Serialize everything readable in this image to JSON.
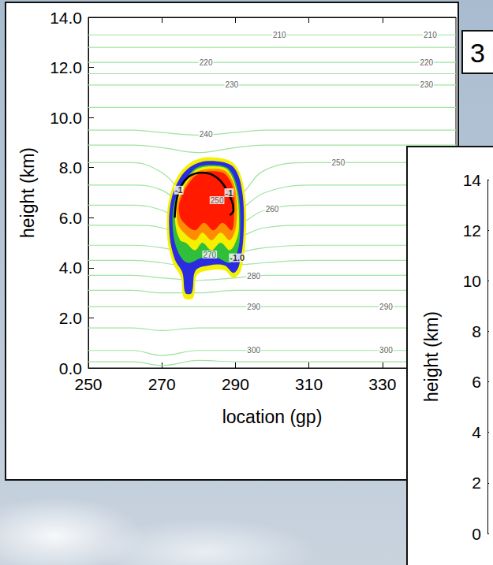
{
  "chart_data": [
    {
      "type": "contour",
      "xlabel": "location (gp)",
      "ylabel": "height (km)",
      "xlim": [
        250,
        350
      ],
      "xticks": [
        250,
        270,
        290,
        310,
        330
      ],
      "ylim": [
        0,
        14
      ],
      "yticks": [
        {
          "value": 0,
          "label": "0.0"
        },
        {
          "value": 2,
          "label": "2.0"
        },
        {
          "value": 4,
          "label": "4.0"
        },
        {
          "value": 6,
          "label": "6.0"
        },
        {
          "value": 8,
          "label": "8.0"
        },
        {
          "value": 10,
          "label": "10.0"
        },
        {
          "value": 12,
          "label": "12.0"
        },
        {
          "value": 14,
          "label": "14.0"
        }
      ],
      "grid": false,
      "isentropes": {
        "color": "#9fe39f",
        "x": [
          250,
          262,
          270,
          280,
          290,
          298,
          310,
          350
        ],
        "lines": [
          {
            "value": 210,
            "y": [
              13.3,
              13.3,
              13.3,
              13.3,
              13.3,
              13.3,
              13.3,
              13.3
            ],
            "label_x": [
              302,
              343
            ]
          },
          {
            "value": 215,
            "y": [
              12.8,
              12.8,
              12.8,
              12.8,
              12.8,
              12.8,
              12.8,
              12.8
            ],
            "label_x": []
          },
          {
            "value": 220,
            "y": [
              12.2,
              12.2,
              12.2,
              12.2,
              12.2,
              12.2,
              12.2,
              12.2
            ],
            "label_x": [
              282,
              342
            ]
          },
          {
            "value": 225,
            "y": [
              11.75,
              11.75,
              11.75,
              11.75,
              11.75,
              11.75,
              11.75,
              11.75
            ],
            "label_x": []
          },
          {
            "value": 230,
            "y": [
              11.3,
              11.3,
              11.3,
              11.3,
              11.3,
              11.3,
              11.3,
              11.3
            ],
            "label_x": [
              289,
              342
            ]
          },
          {
            "value": 235,
            "y": [
              10.4,
              10.4,
              10.4,
              10.4,
              10.4,
              10.4,
              10.4,
              10.4
            ],
            "label_x": []
          },
          {
            "value": 240,
            "y": [
              9.5,
              9.5,
              9.4,
              9.3,
              9.4,
              9.5,
              9.5,
              9.5
            ],
            "label_x": [
              282
            ]
          },
          {
            "value": 245,
            "y": [
              8.9,
              8.9,
              8.8,
              8.6,
              8.8,
              8.9,
              8.9,
              8.9
            ],
            "label_x": []
          },
          {
            "value": 250,
            "y": [
              8.2,
              8.2,
              7.8,
              6.6,
              6.8,
              7.9,
              8.2,
              8.2
            ],
            "label_x": [
              285,
              318
            ]
          },
          {
            "value": 255,
            "y": [
              7.3,
              7.3,
              7.1,
              6.2,
              6.3,
              7.0,
              7.3,
              7.3
            ],
            "label_x": []
          },
          {
            "value": 260,
            "y": [
              6.5,
              6.5,
              6.3,
              5.6,
              5.7,
              6.3,
              6.5,
              6.5
            ],
            "label_x": [
              300
            ]
          },
          {
            "value": 265,
            "y": [
              5.7,
              5.7,
              5.6,
              5.1,
              5.2,
              5.6,
              5.7,
              5.7
            ],
            "label_x": []
          },
          {
            "value": 270,
            "y": [
              4.9,
              4.9,
              4.8,
              4.5,
              4.6,
              4.8,
              4.9,
              4.9
            ],
            "label_x": [
              283
            ]
          },
          {
            "value": 275,
            "y": [
              4.3,
              4.3,
              4.2,
              4.0,
              4.1,
              4.2,
              4.3,
              4.3
            ],
            "label_x": []
          },
          {
            "value": 280,
            "y": [
              3.7,
              3.7,
              3.6,
              3.5,
              3.6,
              3.7,
              3.7,
              3.7
            ],
            "label_x": [
              295
            ]
          },
          {
            "value": 285,
            "y": [
              3.1,
              3.1,
              3.0,
              3.0,
              3.1,
              3.1,
              3.1,
              3.1
            ],
            "label_x": []
          },
          {
            "value": 290,
            "y": [
              2.45,
              2.45,
              2.45,
              2.45,
              2.45,
              2.45,
              2.45,
              2.45
            ],
            "label_x": [
              295,
              331
            ]
          },
          {
            "value": 295,
            "y": [
              1.6,
              1.6,
              1.5,
              1.6,
              1.6,
              1.6,
              1.6,
              1.6
            ],
            "label_x": []
          },
          {
            "value": 300,
            "y": [
              0.7,
              0.7,
              0.5,
              0.7,
              0.7,
              0.7,
              0.7,
              0.7
            ],
            "label_x": [
              295,
              331
            ]
          },
          {
            "value": 305,
            "y": [
              0.25,
              0.25,
              0.1,
              0.3,
              0.25,
              0.25,
              0.25,
              0.25
            ],
            "label_x": []
          }
        ]
      },
      "cloud": [
        {
          "color": "#f2f200",
          "x": [
            276.0,
            278.5,
            279.5,
            283,
            287,
            289.5,
            291.5,
            292.8,
            292.5,
            290,
            285,
            279,
            274.5,
            271.8,
            271.5,
            273,
            275.2
          ],
          "y": [
            2.8,
            2.8,
            3.7,
            3.9,
            3.9,
            3.6,
            3.9,
            5.2,
            7.0,
            8.1,
            8.4,
            8.3,
            7.7,
            6.6,
            5.2,
            4.2,
            3.6
          ]
        },
        {
          "color": "#2b2be0",
          "x": [
            276.4,
            278.1,
            279.2,
            283,
            287,
            289.5,
            291.0,
            292.2,
            291.9,
            289.6,
            285,
            279.2,
            275,
            272.4,
            272.1,
            273.5,
            275.6
          ],
          "y": [
            3.0,
            3.0,
            3.9,
            4.1,
            4.1,
            3.8,
            4.1,
            5.3,
            7.0,
            8.0,
            8.25,
            8.15,
            7.6,
            6.6,
            5.3,
            4.35,
            3.8
          ]
        },
        {
          "color": "#2fbf3a",
          "x": [
            277.0,
            281,
            285,
            288.5,
            290.5,
            291.3,
            290.8,
            288.5,
            285,
            279.5,
            276,
            273.4,
            273.0,
            274.5
          ],
          "y": [
            4.2,
            4.4,
            4.4,
            4.2,
            4.6,
            5.5,
            7.0,
            7.9,
            8.1,
            8.0,
            7.4,
            6.6,
            5.5,
            4.6
          ]
        },
        {
          "color": "#f5f000",
          "x": [
            276.5,
            279,
            281,
            283.5,
            286,
            288.5,
            290.5,
            291,
            290.3,
            288,
            285,
            279.7,
            276.3,
            273.9,
            273.7,
            275
          ],
          "y": [
            5.0,
            4.7,
            5.0,
            4.7,
            5.0,
            4.7,
            5.2,
            5.8,
            7.1,
            7.9,
            8.05,
            7.95,
            7.4,
            6.6,
            5.7,
            5.1
          ]
        },
        {
          "color": "#ff8c00",
          "x": [
            276,
            279,
            281,
            283.5,
            286,
            288.5,
            290.2,
            290,
            287.8,
            285,
            279.8,
            276.6,
            274.3,
            274.3
          ],
          "y": [
            5.4,
            5.1,
            5.4,
            5.1,
            5.4,
            5.1,
            5.7,
            7.1,
            7.8,
            7.95,
            7.85,
            7.35,
            6.6,
            5.8
          ]
        },
        {
          "color": "#ff1a00",
          "x": [
            276,
            279,
            281.5,
            284,
            286.5,
            289,
            289.6,
            289.5,
            287.5,
            285,
            280,
            277,
            274.8,
            274.8
          ],
          "y": [
            5.8,
            5.5,
            5.8,
            5.5,
            5.8,
            5.5,
            6.0,
            7.1,
            7.7,
            7.85,
            7.75,
            7.3,
            6.6,
            6.1
          ]
        }
      ],
      "contour": {
        "color": "#000000",
        "x": [
          273.5,
          274.5,
          277,
          281,
          285,
          288,
          289.5,
          288.5
        ],
        "y": [
          6.0,
          7.0,
          7.6,
          7.8,
          7.6,
          7.0,
          6.3,
          6.1
        ]
      },
      "contour_labels": [
        {
          "text": "-1",
          "x": 274.6,
          "y": 7.1
        },
        {
          "text": "-1",
          "x": 288.3,
          "y": 7.0
        },
        {
          "text": "-1.0",
          "x": 290.5,
          "y": 4.4
        }
      ]
    },
    {
      "type": "contour",
      "title": "3",
      "ylabel": "height (km)",
      "ylim": [
        0,
        14
      ],
      "yticks": [
        0,
        2,
        4,
        6,
        8,
        10,
        12,
        14
      ],
      "tick_labels": "y"
    }
  ]
}
